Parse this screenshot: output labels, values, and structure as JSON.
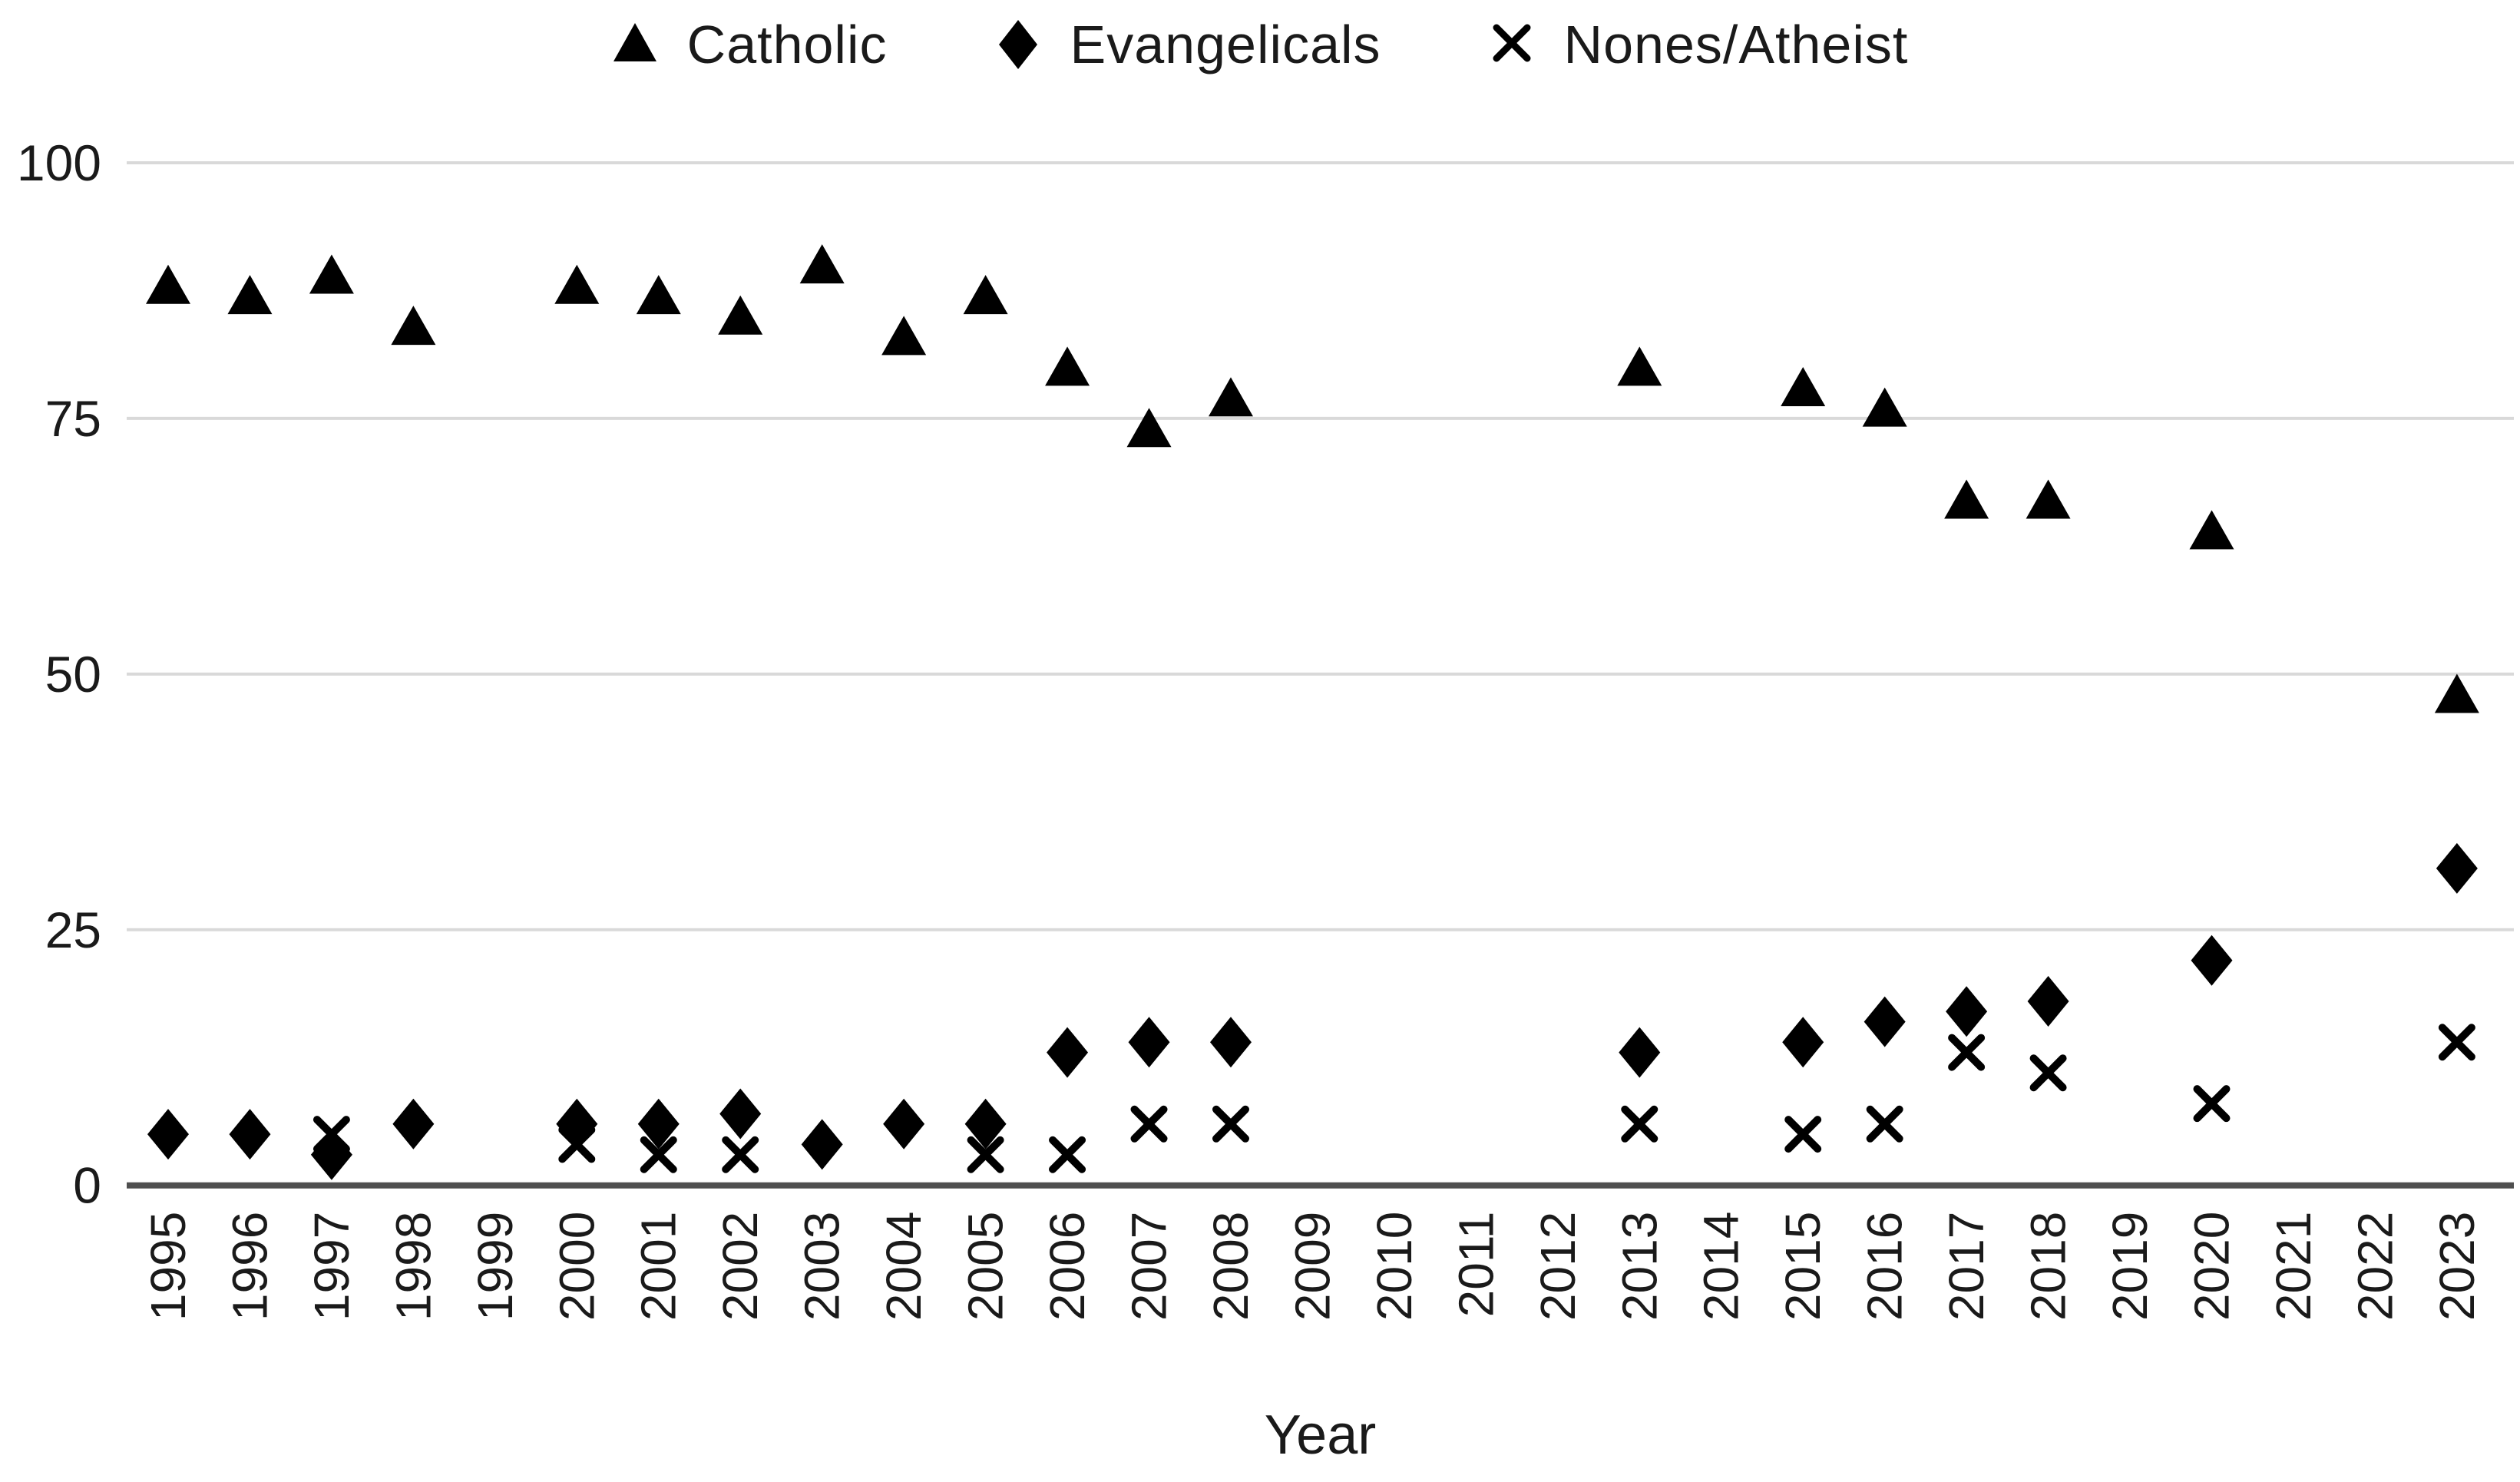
{
  "chart_data": {
    "type": "scatter",
    "title": "",
    "xlabel": "Year",
    "ylabel": "",
    "ylim": [
      0,
      100
    ],
    "y_ticks": [
      0,
      25,
      50,
      75,
      100
    ],
    "x_ticks": [
      1995,
      1996,
      1997,
      1998,
      1999,
      2000,
      2001,
      2002,
      2003,
      2004,
      2005,
      2006,
      2007,
      2008,
      2009,
      2010,
      2011,
      2012,
      2013,
      2014,
      2015,
      2016,
      2017,
      2018,
      2019,
      2020,
      2021,
      2022,
      2023
    ],
    "grid": "horizontal-only",
    "legend_position": "top-center",
    "series": [
      {
        "name": "Catholic",
        "marker": "triangle",
        "color": "#000000",
        "points": [
          [
            1995,
            88
          ],
          [
            1996,
            87
          ],
          [
            1997,
            89
          ],
          [
            1998,
            84
          ],
          [
            2000,
            88
          ],
          [
            2001,
            87
          ],
          [
            2002,
            85
          ],
          [
            2003,
            90
          ],
          [
            2004,
            83
          ],
          [
            2005,
            87
          ],
          [
            2006,
            80
          ],
          [
            2007,
            74
          ],
          [
            2008,
            77
          ],
          [
            2013,
            80
          ],
          [
            2015,
            78
          ],
          [
            2016,
            76
          ],
          [
            2017,
            67
          ],
          [
            2018,
            67
          ],
          [
            2020,
            64
          ],
          [
            2023,
            48
          ]
        ]
      },
      {
        "name": "Evangelicals",
        "marker": "diamond",
        "color": "#000000",
        "points": [
          [
            1995,
            5
          ],
          [
            1996,
            5
          ],
          [
            1997,
            3
          ],
          [
            1998,
            6
          ],
          [
            2000,
            6
          ],
          [
            2001,
            6
          ],
          [
            2002,
            7
          ],
          [
            2003,
            4
          ],
          [
            2004,
            6
          ],
          [
            2005,
            6
          ],
          [
            2006,
            13
          ],
          [
            2007,
            14
          ],
          [
            2008,
            14
          ],
          [
            2013,
            13
          ],
          [
            2015,
            14
          ],
          [
            2016,
            16
          ],
          [
            2017,
            17
          ],
          [
            2018,
            18
          ],
          [
            2020,
            22
          ],
          [
            2023,
            31
          ]
        ]
      },
      {
        "name": "Nones/Atheist",
        "marker": "x",
        "color": "#000000",
        "points": [
          [
            1997,
            5
          ],
          [
            2000,
            4
          ],
          [
            2001,
            3
          ],
          [
            2002,
            3
          ],
          [
            2005,
            3
          ],
          [
            2006,
            3
          ],
          [
            2007,
            6
          ],
          [
            2008,
            6
          ],
          [
            2013,
            6
          ],
          [
            2015,
            5
          ],
          [
            2016,
            6
          ],
          [
            2017,
            13
          ],
          [
            2018,
            11
          ],
          [
            2020,
            8
          ],
          [
            2023,
            14
          ]
        ]
      }
    ]
  },
  "legend": {
    "items": [
      {
        "label": "Catholic",
        "marker": "triangle"
      },
      {
        "label": "Evangelicals",
        "marker": "diamond"
      },
      {
        "label": "Nones/Atheist",
        "marker": "x"
      }
    ]
  },
  "styles": {
    "background": "#ffffff",
    "marker_color": "#000000",
    "grid_color": "#d9d9d9",
    "axis_line_color": "#4f4f4f",
    "text_color": "#1a1a1a"
  }
}
